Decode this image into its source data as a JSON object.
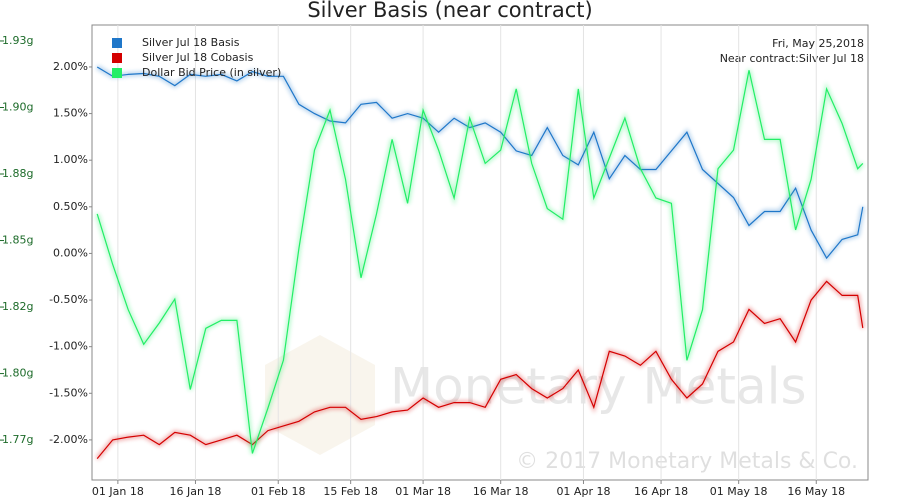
{
  "chart_data": {
    "type": "line",
    "title": "Silver Basis (near contract)",
    "annotations": [
      "Fri, May 25,2018",
      "Near contract:Silver Jul 18"
    ],
    "watermark": [
      "Monetary Metals",
      "© 2017 Monetary Metals & Co."
    ],
    "x": [
      "2017-12-28",
      "2017-12-31",
      "2018-01-03",
      "2018-01-06",
      "2018-01-09",
      "2018-01-12",
      "2018-01-15",
      "2018-01-18",
      "2018-01-21",
      "2018-01-24",
      "2018-01-27",
      "2018-01-30",
      "2018-02-02",
      "2018-02-05",
      "2018-02-08",
      "2018-02-11",
      "2018-02-14",
      "2018-02-17",
      "2018-02-20",
      "2018-02-23",
      "2018-02-26",
      "2018-03-01",
      "2018-03-04",
      "2018-03-07",
      "2018-03-10",
      "2018-03-13",
      "2018-03-16",
      "2018-03-19",
      "2018-03-22",
      "2018-03-25",
      "2018-03-28",
      "2018-03-31",
      "2018-04-03",
      "2018-04-06",
      "2018-04-09",
      "2018-04-12",
      "2018-04-15",
      "2018-04-18",
      "2018-04-21",
      "2018-04-24",
      "2018-04-27",
      "2018-04-30",
      "2018-05-03",
      "2018-05-06",
      "2018-05-09",
      "2018-05-12",
      "2018-05-15",
      "2018-05-18",
      "2018-05-21",
      "2018-05-24",
      "2018-05-25"
    ],
    "series": [
      {
        "name": "Silver Jul 18 Basis",
        "color": "#1f77c9",
        "values": [
          2.0,
          1.9,
          1.92,
          1.93,
          1.9,
          1.8,
          1.92,
          1.9,
          1.92,
          1.85,
          1.95,
          1.9,
          1.9,
          1.6,
          1.5,
          1.42,
          1.4,
          1.6,
          1.62,
          1.45,
          1.5,
          1.45,
          1.3,
          1.45,
          1.35,
          1.4,
          1.3,
          1.1,
          1.05,
          1.35,
          1.05,
          0.95,
          1.3,
          0.8,
          1.05,
          0.9,
          0.9,
          1.1,
          1.3,
          0.9,
          0.75,
          0.6,
          0.3,
          0.45,
          0.45,
          0.7,
          0.25,
          -0.05,
          0.15,
          0.2,
          0.5
        ]
      },
      {
        "name": "Silver Jul 18 Cobasis",
        "color": "#d40000",
        "values": [
          -2.2,
          -2.0,
          -1.97,
          -1.95,
          -2.05,
          -1.92,
          -1.95,
          -2.05,
          -2.0,
          -1.95,
          -2.05,
          -1.9,
          -1.85,
          -1.8,
          -1.7,
          -1.65,
          -1.65,
          -1.78,
          -1.75,
          -1.7,
          -1.68,
          -1.55,
          -1.65,
          -1.6,
          -1.6,
          -1.65,
          -1.35,
          -1.3,
          -1.45,
          -1.55,
          -1.45,
          -1.25,
          -1.65,
          -1.05,
          -1.1,
          -1.2,
          -1.05,
          -1.35,
          -1.55,
          -1.4,
          -1.05,
          -0.95,
          -0.6,
          -0.75,
          -0.7,
          -0.95,
          -0.5,
          -0.3,
          -0.45,
          -0.45,
          -0.8
        ]
      },
      {
        "name": "Dollar Bid Price (in silver)",
        "color": "#22ee66",
        "axis": "y2",
        "values": [
          1.86,
          1.841,
          1.824,
          1.811,
          1.819,
          1.828,
          1.794,
          1.817,
          1.82,
          1.82,
          1.77,
          1.787,
          1.805,
          1.847,
          1.884,
          1.899,
          1.873,
          1.836,
          1.86,
          1.888,
          1.864,
          1.899,
          1.884,
          1.866,
          1.896,
          1.879,
          1.884,
          1.907,
          1.879,
          1.862,
          1.858,
          1.907,
          1.866,
          1.881,
          1.896,
          1.877,
          1.866,
          1.864,
          1.805,
          1.824,
          1.877,
          1.884,
          1.914,
          1.888,
          1.888,
          1.854,
          1.873,
          1.907,
          1.894,
          1.877,
          1.879
        ]
      }
    ],
    "xlim": [
      "2017-12-27",
      "2018-05-26"
    ],
    "xticks": [
      {
        "value": "2018-01-01",
        "label": "01 Jan 18"
      },
      {
        "value": "2018-01-16",
        "label": "16 Jan 18"
      },
      {
        "value": "2018-02-01",
        "label": "01 Feb 18"
      },
      {
        "value": "2018-02-15",
        "label": "15 Feb 18"
      },
      {
        "value": "2018-03-01",
        "label": "01 Mar 18"
      },
      {
        "value": "2018-03-16",
        "label": "16 Mar 18"
      },
      {
        "value": "2018-04-01",
        "label": "01 Apr 18"
      },
      {
        "value": "2018-04-16",
        "label": "16 Apr 18"
      },
      {
        "value": "2018-05-01",
        "label": "01 May 18"
      },
      {
        "value": "2018-05-16",
        "label": "16 May 18"
      }
    ],
    "ylim": [
      -2.43,
      2.45
    ],
    "yticks": [
      {
        "value": 2,
        "label": "2.00%"
      },
      {
        "value": 1.5,
        "label": "1.50%"
      },
      {
        "value": 1,
        "label": "1.00%"
      },
      {
        "value": 0.5,
        "label": "0.50%"
      },
      {
        "value": 0,
        "label": "0.00%"
      },
      {
        "value": -0.5,
        "label": "-0.50%"
      },
      {
        "value": -1,
        "label": "-1.00%"
      },
      {
        "value": -1.5,
        "label": "-1.50%"
      },
      {
        "value": -2,
        "label": "-2.00%"
      }
    ],
    "y2lim": [
      1.76,
      1.931
    ],
    "y2ticks": [
      {
        "value": 1.925,
        "label": "1.93g"
      },
      {
        "value": 1.9,
        "label": "1.90g"
      },
      {
        "value": 1.875,
        "label": "1.88g"
      },
      {
        "value": 1.85,
        "label": "1.85g"
      },
      {
        "value": 1.825,
        "label": "1.82g"
      },
      {
        "value": 1.8,
        "label": "1.80g"
      },
      {
        "value": 1.775,
        "label": "1.77g"
      }
    ],
    "grid": "x",
    "legend": "upper left"
  }
}
